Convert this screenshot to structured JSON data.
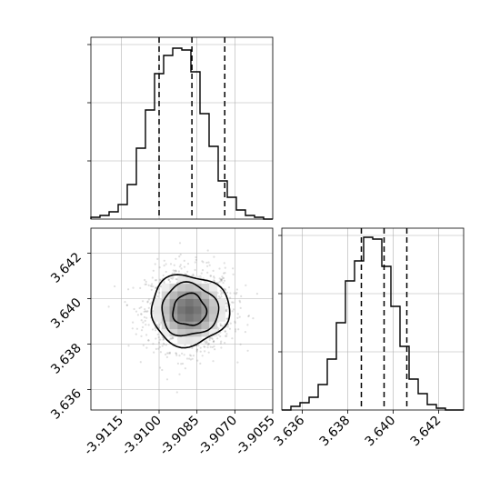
{
  "chart_data": {
    "type": "corner",
    "colors": {
      "line": "#000000",
      "grid": "#b0b0b0",
      "points": "#808080"
    },
    "grid": true,
    "parameters": [
      {
        "id": "x",
        "axis_range": [
          -3.9127,
          -3.9055
        ],
        "tick_labels": [
          "-3.9115",
          "-3.9100",
          "-3.9085",
          "-3.9070",
          "-3.9055"
        ],
        "tick_values": [
          -3.9115,
          -3.91,
          -3.9085,
          -3.907,
          -3.9055
        ]
      },
      {
        "id": "y",
        "axis_range": [
          3.6351,
          3.6431
        ],
        "tick_labels": [
          "3.636",
          "3.638",
          "3.640",
          "3.642"
        ],
        "tick_values": [
          3.636,
          3.638,
          3.64,
          3.642
        ]
      }
    ],
    "histograms": [
      {
        "parameter": "x",
        "type": "step-histogram",
        "y_max": 1.0,
        "bin_edges_start": -3.9127,
        "bin_width": 0.00036,
        "counts": [
          0.01,
          0.02,
          0.04,
          0.08,
          0.19,
          0.39,
          0.6,
          0.8,
          0.9,
          0.94,
          0.93,
          0.81,
          0.58,
          0.4,
          0.21,
          0.12,
          0.05,
          0.02,
          0.01,
          0.0
        ],
        "quantiles": [
          -3.91,
          -3.9087,
          -3.9074
        ]
      },
      {
        "parameter": "y",
        "type": "step-histogram",
        "y_max": 1.0,
        "bin_edges_start": 3.6351,
        "bin_width": 0.0004,
        "counts": [
          0.0,
          0.02,
          0.04,
          0.07,
          0.14,
          0.28,
          0.48,
          0.71,
          0.82,
          0.95,
          0.94,
          0.79,
          0.57,
          0.35,
          0.17,
          0.09,
          0.03,
          0.01,
          0.0,
          0.0
        ],
        "quantiles": [
          3.6386,
          3.6396,
          3.6406
        ]
      }
    ],
    "joint": {
      "x": "x",
      "y": "y",
      "center": [
        -3.9088,
        3.6395
      ],
      "sd": [
        0.00085,
        0.0009
      ],
      "contours": [
        {
          "level": 0.5,
          "rx": 0.00066,
          "ry": 0.0007
        },
        {
          "level": 1.0,
          "rx": 0.00112,
          "ry": 0.00115
        },
        {
          "level": 1.5,
          "rx": 0.00155,
          "ry": 0.00155
        }
      ]
    }
  }
}
